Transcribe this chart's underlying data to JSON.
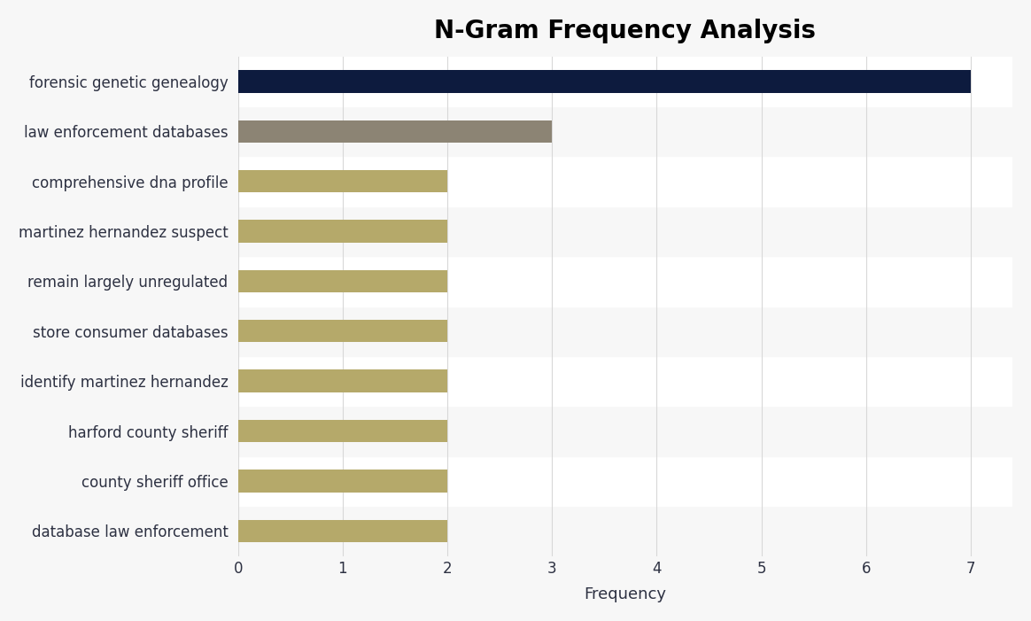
{
  "title": "N-Gram Frequency Analysis",
  "categories": [
    "database law enforcement",
    "county sheriff office",
    "harford county sheriff",
    "identify martinez hernandez",
    "store consumer databases",
    "remain largely unregulated",
    "martinez hernandez suspect",
    "comprehensive dna profile",
    "law enforcement databases",
    "forensic genetic genealogy"
  ],
  "values": [
    2,
    2,
    2,
    2,
    2,
    2,
    2,
    2,
    3,
    7
  ],
  "bar_colors": [
    "#b5a96a",
    "#b5a96a",
    "#b5a96a",
    "#b5a96a",
    "#b5a96a",
    "#b5a96a",
    "#b5a96a",
    "#b5a96a",
    "#8c8474",
    "#0d1b3e"
  ],
  "row_bg_even": "#f7f7f7",
  "row_bg_odd": "#ffffff",
  "xlabel": "Frequency",
  "xlim": [
    0,
    7.4
  ],
  "xticks": [
    0,
    1,
    2,
    3,
    4,
    5,
    6,
    7
  ],
  "background_color": "#f7f7f7",
  "title_fontsize": 20,
  "label_fontsize": 12,
  "tick_fontsize": 12,
  "xlabel_fontsize": 13,
  "text_color": "#2d3142"
}
